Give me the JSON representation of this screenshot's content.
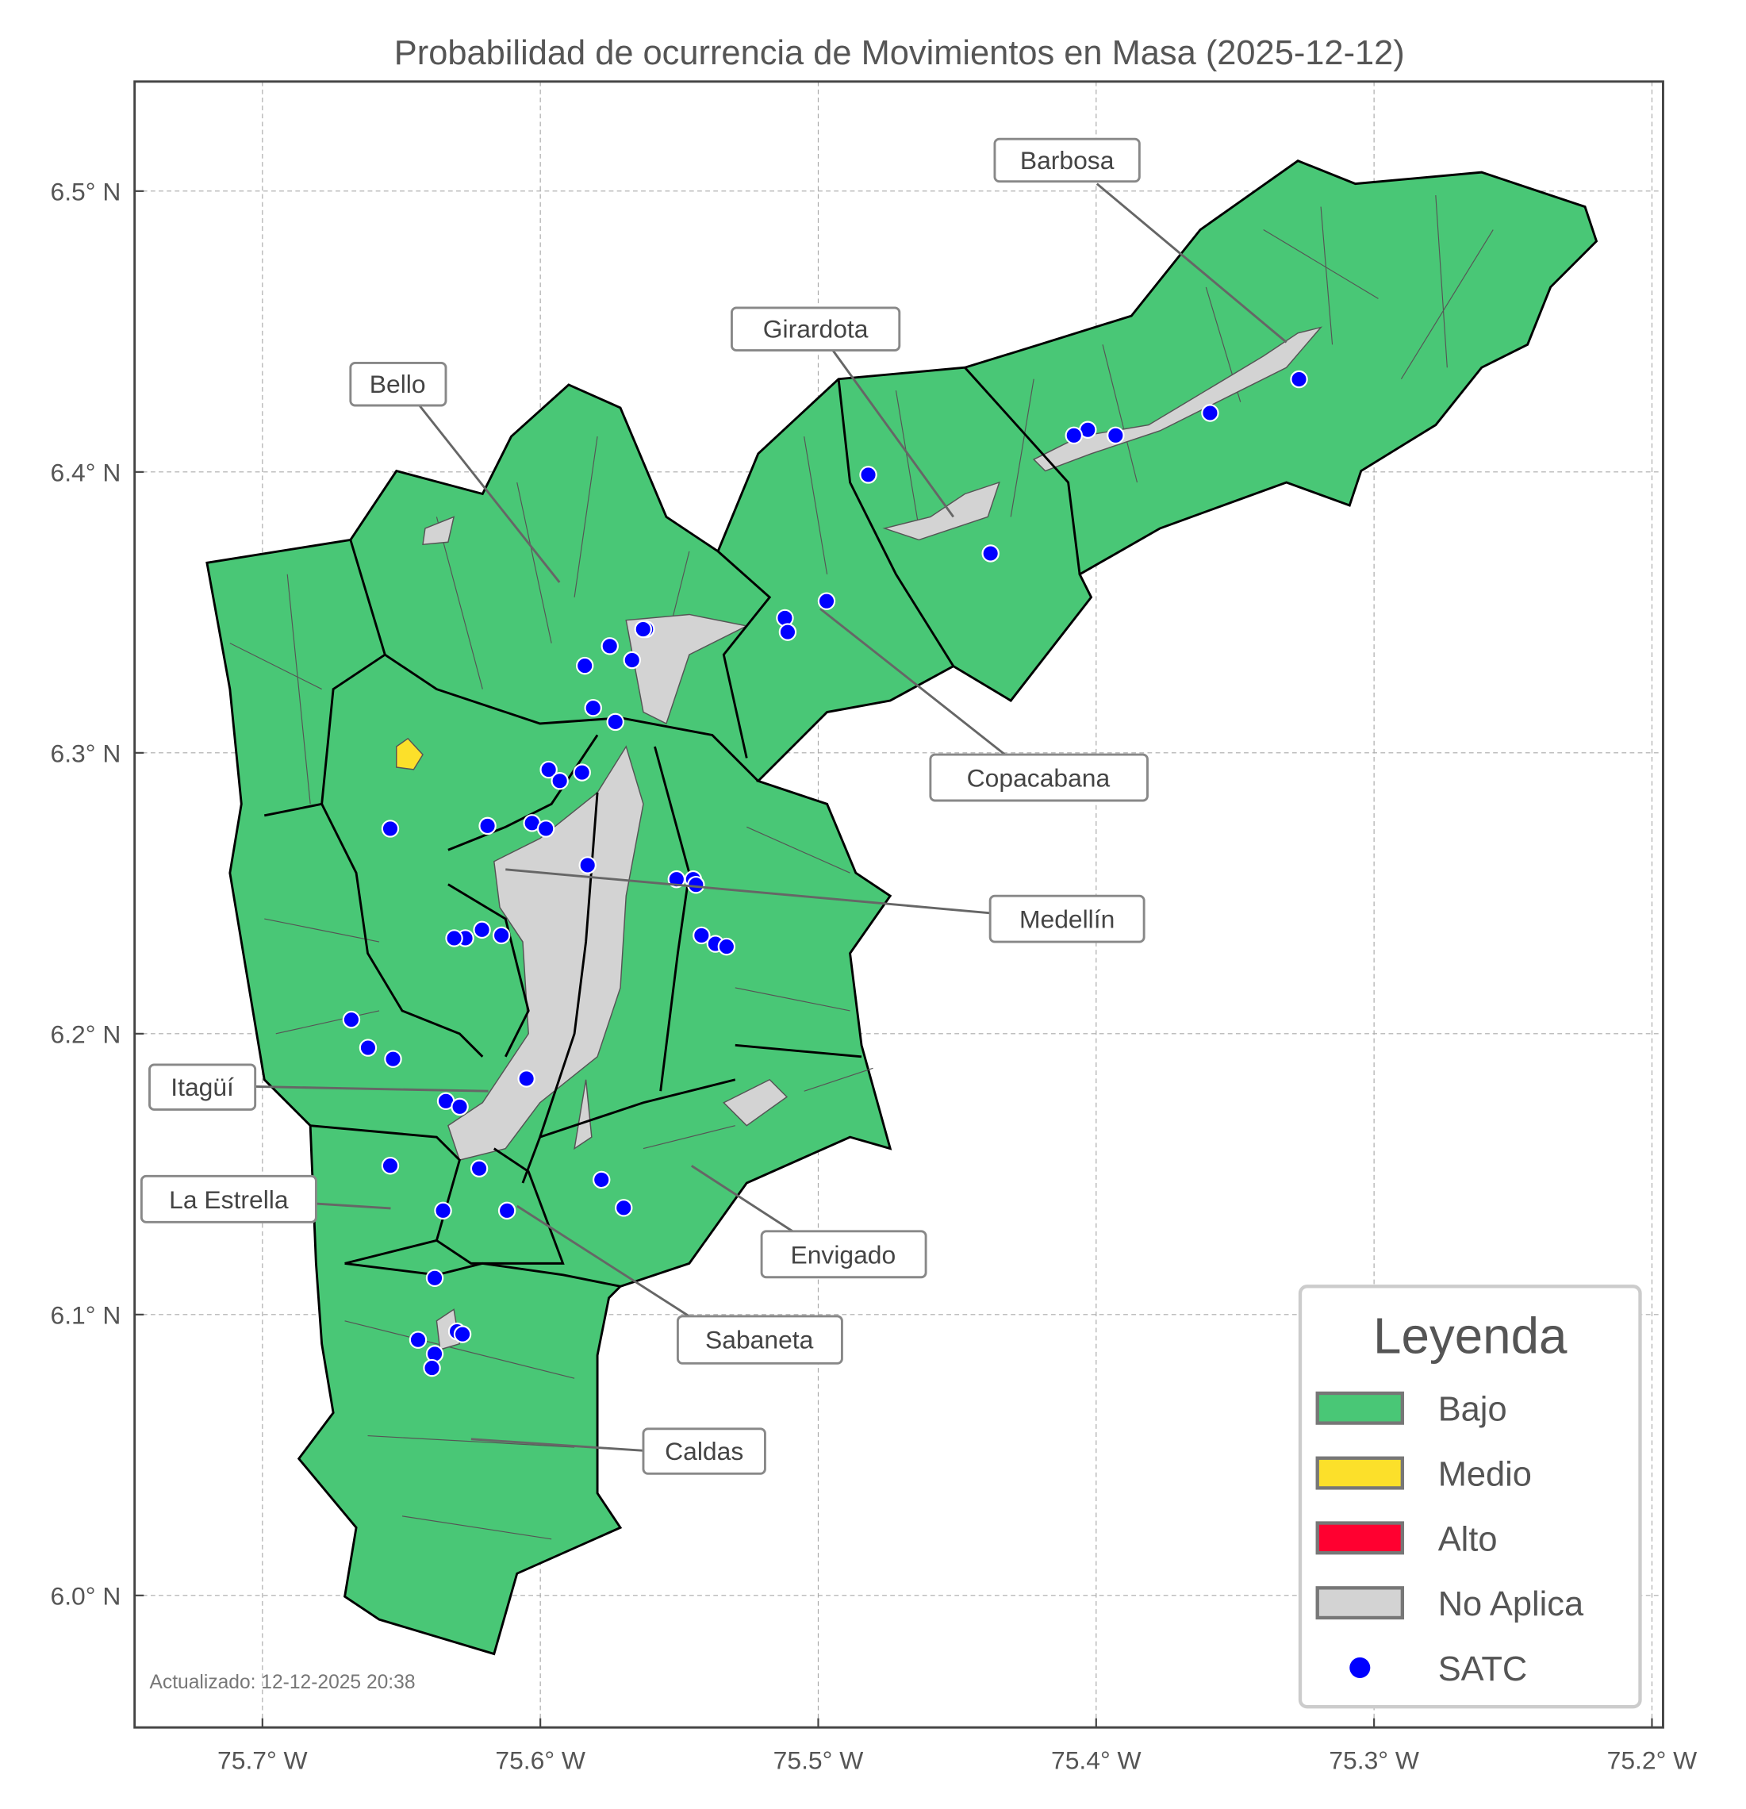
{
  "chart_data": {
    "type": "map",
    "title": "Probabilidad de ocurrencia de Movimientos en Masa (2025-12-12)",
    "x_ticks": [
      {
        "value": -75.7,
        "label": "75.7° W"
      },
      {
        "value": -75.6,
        "label": "75.6° W"
      },
      {
        "value": -75.5,
        "label": "75.5° W"
      },
      {
        "value": -75.4,
        "label": "75.4° W"
      },
      {
        "value": -75.3,
        "label": "75.3° W"
      },
      {
        "value": -75.2,
        "label": "75.2° W"
      }
    ],
    "y_ticks": [
      {
        "value": 6.5,
        "label": "6.5° N"
      },
      {
        "value": 6.4,
        "label": "6.4° N"
      },
      {
        "value": 6.3,
        "label": "6.3° N"
      },
      {
        "value": 6.2,
        "label": "6.2° N"
      },
      {
        "value": 6.1,
        "label": "6.1° N"
      },
      {
        "value": 6.0,
        "label": "6.0° N"
      }
    ],
    "xlim": [
      -75.746,
      -75.196
    ],
    "ylim": [
      5.953,
      6.539
    ],
    "grid": true,
    "legend": {
      "title": "Leyenda",
      "placement": "lower-right",
      "items": [
        {
          "label": "Bajo",
          "color": "#49c776",
          "kind": "patch"
        },
        {
          "label": "Medio",
          "color": "#fce02a",
          "kind": "patch"
        },
        {
          "label": "Alto",
          "color": "#ff0030",
          "kind": "patch"
        },
        {
          "label": "No Aplica",
          "color": "#d3d3d3",
          "kind": "patch"
        },
        {
          "label": "SATC",
          "color": "#0000ff",
          "kind": "point"
        }
      ]
    },
    "municipalities": [
      {
        "name": "Barbosa",
        "category": "Bajo"
      },
      {
        "name": "Girardota",
        "category": "Bajo"
      },
      {
        "name": "Bello",
        "category": "Bajo"
      },
      {
        "name": "Copacabana",
        "category": "Bajo"
      },
      {
        "name": "Medellín",
        "category": "Bajo"
      },
      {
        "name": "Itagüí",
        "category": "Bajo"
      },
      {
        "name": "La Estrella",
        "category": "Bajo"
      },
      {
        "name": "Envigado",
        "category": "Bajo"
      },
      {
        "name": "Sabaneta",
        "category": "Bajo"
      },
      {
        "name": "Caldas",
        "category": "Bajo"
      }
    ],
    "satc_stations": [
      [
        -75.327,
        6.433
      ],
      [
        -75.359,
        6.421
      ],
      [
        -75.393,
        6.413
      ],
      [
        -75.403,
        6.415
      ],
      [
        -75.408,
        6.413
      ],
      [
        -75.482,
        6.399
      ],
      [
        -75.438,
        6.371
      ],
      [
        -75.497,
        6.354
      ],
      [
        -75.512,
        6.348
      ],
      [
        -75.511,
        6.343
      ],
      [
        -75.562,
        6.344
      ],
      [
        -75.563,
        6.344
      ],
      [
        -75.567,
        6.333
      ],
      [
        -75.575,
        6.338
      ],
      [
        -75.584,
        6.331
      ],
      [
        -75.581,
        6.316
      ],
      [
        -75.573,
        6.311
      ],
      [
        -75.597,
        6.294
      ],
      [
        -75.585,
        6.293
      ],
      [
        -75.593,
        6.29
      ],
      [
        -75.654,
        6.273
      ],
      [
        -75.619,
        6.274
      ],
      [
        -75.603,
        6.275
      ],
      [
        -75.598,
        6.273
      ],
      [
        -75.583,
        6.26
      ],
      [
        -75.551,
        6.255
      ],
      [
        -75.545,
        6.255
      ],
      [
        -75.544,
        6.253
      ],
      [
        -75.542,
        6.235
      ],
      [
        -75.537,
        6.232
      ],
      [
        -75.533,
        6.231
      ],
      [
        -75.621,
        6.237
      ],
      [
        -75.627,
        6.234
      ],
      [
        -75.631,
        6.234
      ],
      [
        -75.614,
        6.235
      ],
      [
        -75.668,
        6.205
      ],
      [
        -75.662,
        6.195
      ],
      [
        -75.653,
        6.191
      ],
      [
        -75.605,
        6.184
      ],
      [
        -75.634,
        6.176
      ],
      [
        -75.629,
        6.174
      ],
      [
        -75.654,
        6.153
      ],
      [
        -75.622,
        6.152
      ],
      [
        -75.578,
        6.148
      ],
      [
        -75.57,
        6.138
      ],
      [
        -75.612,
        6.137
      ],
      [
        -75.635,
        6.137
      ],
      [
        -75.638,
        6.113
      ],
      [
        -75.644,
        6.091
      ],
      [
        -75.63,
        6.094
      ],
      [
        -75.628,
        6.093
      ],
      [
        -75.638,
        6.086
      ],
      [
        -75.639,
        6.081
      ]
    ],
    "footnote": "Actualizado: 12-12-2025 20:38"
  }
}
